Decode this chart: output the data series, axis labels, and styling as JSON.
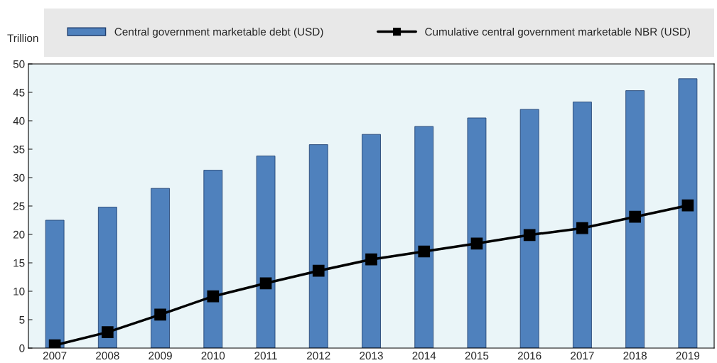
{
  "chart_data": {
    "type": "bar",
    "ylabel": "Trillion",
    "categories": [
      "2007",
      "2008",
      "2009",
      "2010",
      "2011",
      "2012",
      "2013",
      "2014",
      "2015",
      "2016",
      "2017",
      "2018",
      "2019"
    ],
    "series": [
      {
        "name": "Central government marketable debt (USD)",
        "color": "#4f81bd",
        "values": [
          22.5,
          24.8,
          28.1,
          31.3,
          33.8,
          35.8,
          37.6,
          39,
          40.5,
          42,
          43.3,
          45.3,
          47.4
        ]
      },
      {
        "name": "Cumulative central government marketable NBR (USD)",
        "type": "line",
        "color": "#000000",
        "marker": "square",
        "values": [
          0.5,
          2.8,
          5.9,
          9.1,
          11.4,
          13.6,
          15.6,
          17,
          18.4,
          19.9,
          21.1,
          23.1,
          25.1
        ]
      }
    ],
    "ylim": [
      0,
      50
    ],
    "yticks": [
      0,
      5,
      10,
      15,
      20,
      25,
      30,
      35,
      40,
      45,
      50
    ],
    "grid": false,
    "legend": "top"
  }
}
